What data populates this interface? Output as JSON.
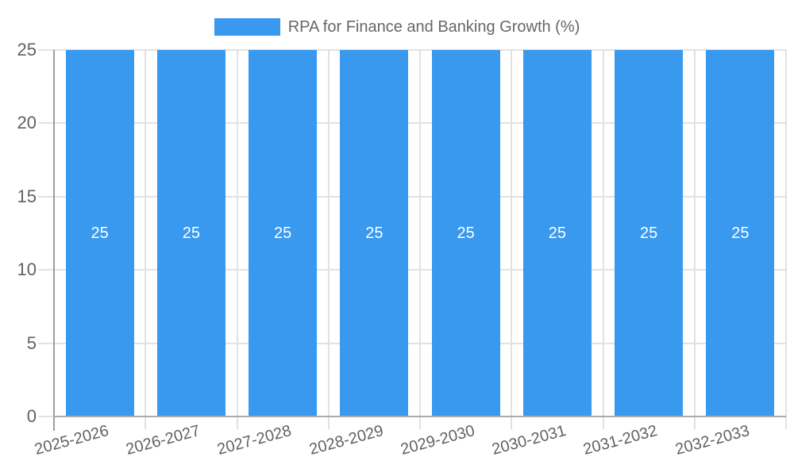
{
  "chart_data": {
    "type": "bar",
    "title": "RPA for Finance and Banking Growth (%)",
    "categories": [
      "2025-2026",
      "2026-2027",
      "2027-2028",
      "2028-2029",
      "2029-2030",
      "2030-2031",
      "2031-2032",
      "2032-2033"
    ],
    "values": [
      25,
      25,
      25,
      25,
      25,
      25,
      25,
      25
    ],
    "xlabel": "",
    "ylabel": "",
    "ylim": [
      0,
      25
    ],
    "yticks": [
      0,
      5,
      10,
      15,
      20,
      25
    ],
    "grid": true,
    "legend_position": "top",
    "bar_label_position": "center",
    "colors": {
      "bar": "#3899EE",
      "bar_label": "#FFFFFF",
      "gridline": "#E2E2E2",
      "y_axis": "#9E9E9E",
      "baseline": "#ABABAB",
      "tick_text": "#616161",
      "legend_text": "#666666",
      "background": "#FFFFFF"
    }
  }
}
